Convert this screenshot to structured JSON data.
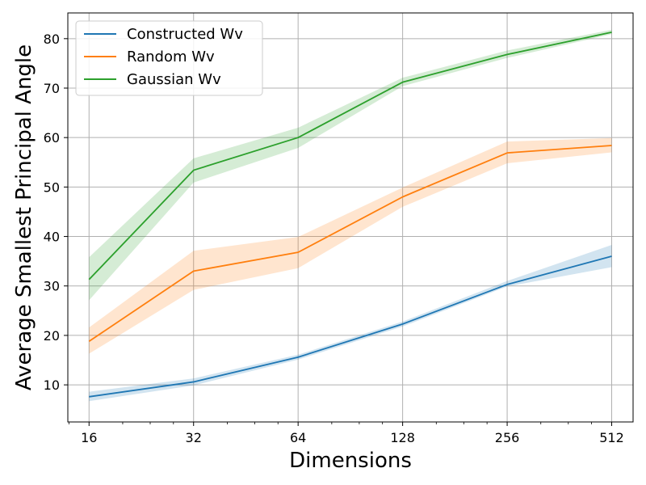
{
  "chart_data": {
    "type": "line",
    "xlabel": "Dimensions",
    "ylabel": "Average Smallest Principal Angle",
    "x_scale": "log2",
    "x": [
      16,
      32,
      64,
      128,
      256,
      512
    ],
    "x_tick_labels": [
      "16",
      "32",
      "64",
      "128",
      "256",
      "512"
    ],
    "xlim": [
      13.9,
      590
    ],
    "ylim": [
      2.5,
      85.2
    ],
    "y_ticks": [
      10,
      20,
      30,
      40,
      50,
      60,
      70,
      80
    ],
    "y_tick_labels": [
      "10",
      "20",
      "30",
      "40",
      "50",
      "60",
      "70",
      "80"
    ],
    "grid": true,
    "legend_position": "top-left",
    "series": [
      {
        "name": "Constructed Wv",
        "color": "#1f77b4",
        "values": [
          7.6,
          10.6,
          15.6,
          22.3,
          30.3,
          36.0
        ],
        "lower": [
          6.7,
          9.9,
          15.1,
          21.8,
          29.9,
          33.8
        ],
        "upper": [
          8.6,
          11.3,
          16.1,
          22.8,
          31.0,
          38.3
        ]
      },
      {
        "name": "Random Wv",
        "color": "#ff7f0e",
        "values": [
          18.8,
          33.0,
          36.8,
          48.0,
          56.9,
          58.4
        ],
        "lower": [
          16.3,
          29.2,
          33.6,
          46.0,
          54.8,
          57.0
        ],
        "upper": [
          21.6,
          37.1,
          39.9,
          49.9,
          59.2,
          59.9
        ]
      },
      {
        "name": "Gaussian Wv",
        "color": "#2ca02c",
        "values": [
          31.3,
          53.4,
          60.0,
          71.2,
          76.8,
          81.3
        ],
        "lower": [
          27.1,
          50.9,
          57.9,
          70.4,
          76.1,
          80.9
        ],
        "upper": [
          35.8,
          55.8,
          62.0,
          72.1,
          77.6,
          81.8
        ]
      }
    ]
  }
}
